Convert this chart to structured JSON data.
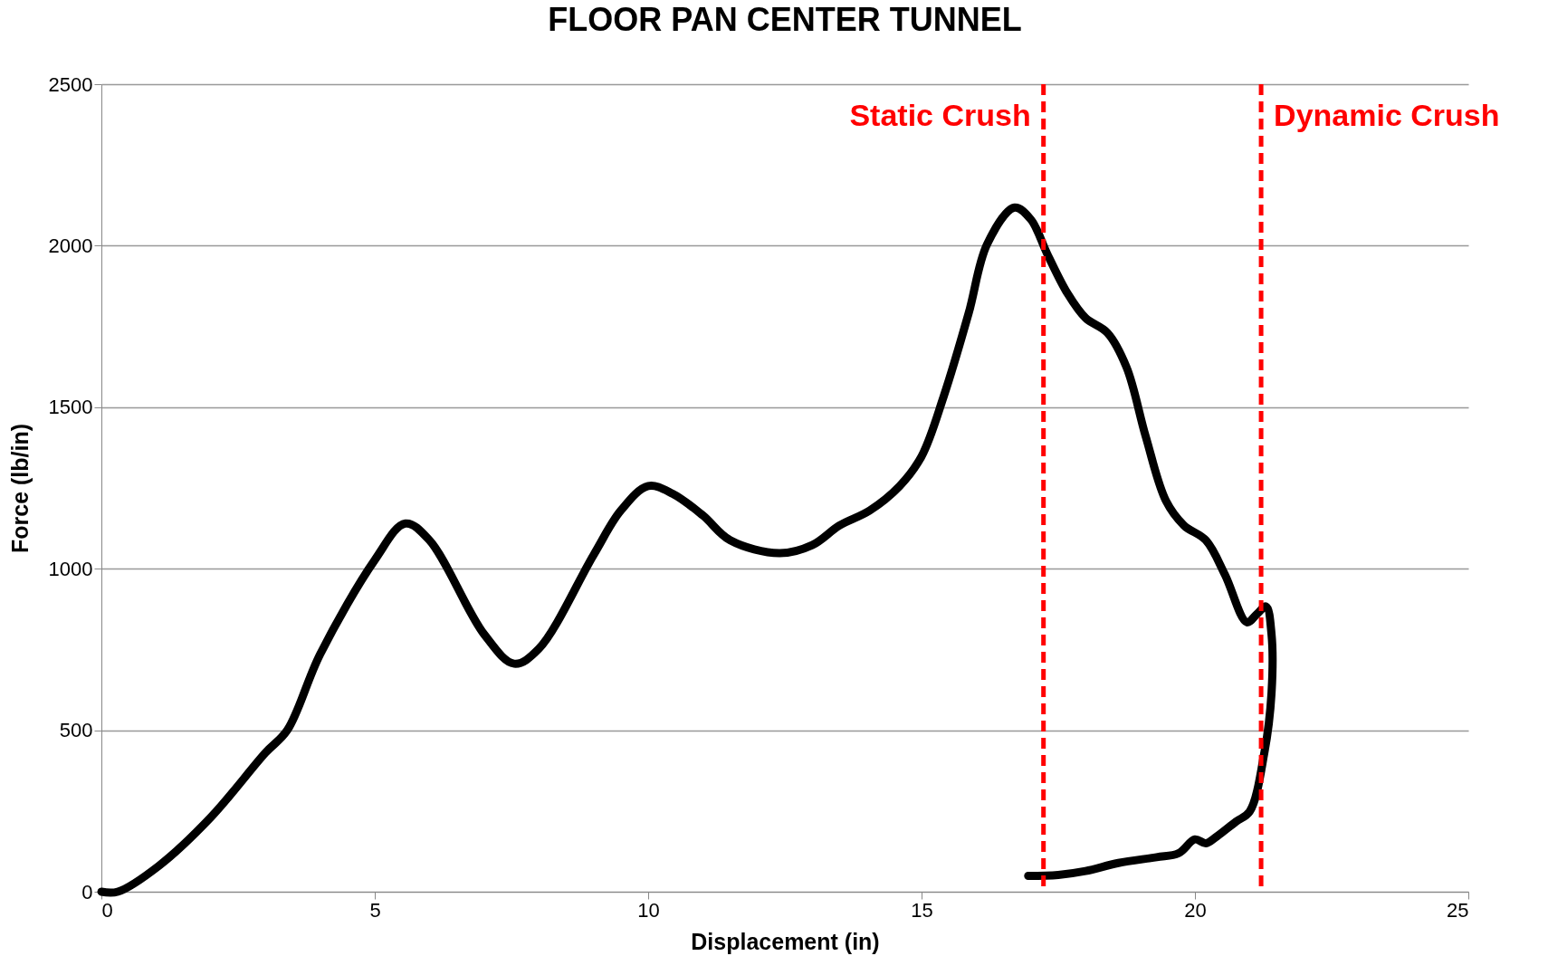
{
  "chart_data": {
    "type": "line",
    "title": "FLOOR PAN CENTER TUNNEL",
    "xlabel": "Displacement (in)",
    "ylabel": "Force (lb/in)",
    "xlim": [
      0,
      25
    ],
    "xticks": [
      0,
      5,
      10,
      15,
      20,
      25
    ],
    "ylim": [
      0,
      2500
    ],
    "yticks": [
      0,
      500,
      1000,
      1500,
      2000,
      2500
    ],
    "grid": "y",
    "line_style": "solid",
    "series": [
      {
        "color": "#000000",
        "x": [
          0,
          0.3,
          1.05,
          2,
          3,
          3.4,
          4,
          5,
          5.56,
          6,
          7,
          7.55,
          8,
          9,
          9.5,
          10,
          10.45,
          11,
          11.5,
          12.4,
          13,
          13.5,
          14.05,
          14.6,
          15,
          15.4,
          15.86,
          16.2,
          16.7,
          17,
          17.3,
          17.67,
          18,
          18.4,
          18.75,
          19.1,
          19.47,
          19.8,
          20.2,
          20.55,
          20.95,
          21.13,
          21.3,
          21.4,
          21.4,
          21.27,
          21,
          20.75,
          20.4,
          20.2,
          20,
          19.7,
          19.3,
          18.6,
          18,
          17.5,
          16.95
        ],
        "values": [
          0,
          0,
          80,
          230,
          430,
          500,
          735,
          1027,
          1140,
          1088,
          797,
          706,
          752,
          1042,
          1180,
          1256,
          1232,
          1165,
          1088,
          1048,
          1073,
          1134,
          1180,
          1256,
          1348,
          1531,
          1790,
          2005,
          2118,
          2081,
          1974,
          1852,
          1776,
          1730,
          1623,
          1409,
          1210,
          1134,
          1088,
          981,
          834,
          859,
          883,
          798,
          614,
          431,
          248,
          217,
          171,
          150,
          162,
          119,
          107,
          89,
          64,
          52,
          49
        ]
      }
    ],
    "ref_lines": [
      {
        "axis": "x",
        "value": 17.23,
        "label": "Static Crush",
        "color": "#ff0000",
        "line_style": "dashed"
      },
      {
        "axis": "x",
        "value": 21.21,
        "label": "Dynamic Crush",
        "color": "#ff0000",
        "line_style": "dashed"
      }
    ]
  }
}
